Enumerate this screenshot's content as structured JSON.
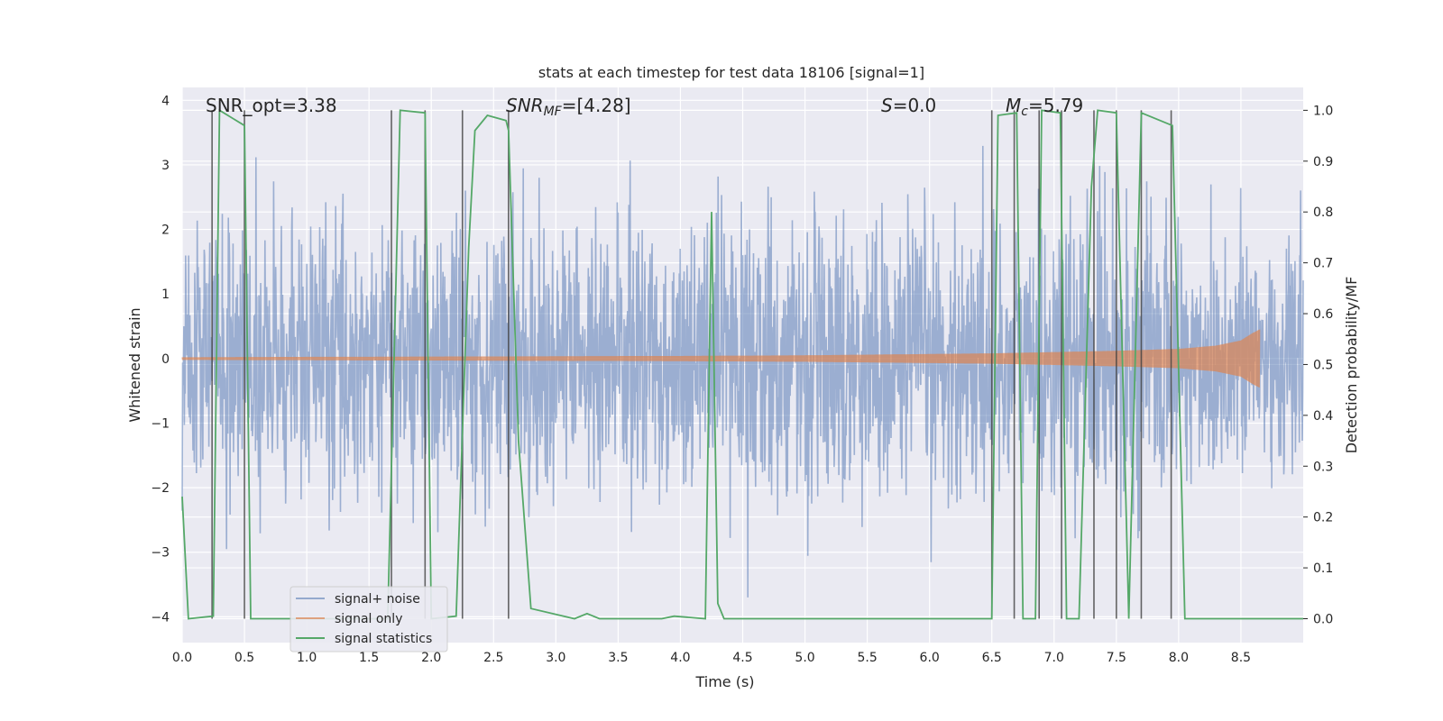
{
  "chart_data": {
    "type": "line",
    "title": "stats at each timestep for test data 18106 [signal=1]",
    "xlabel": "Time (s)",
    "ylabel": "Whitened strain",
    "y2label": "Detection probability/MF",
    "xlim": [
      0.0,
      9.0
    ],
    "ylim": [
      -4.4,
      4.2
    ],
    "y2lim": [
      -0.047,
      1.045
    ],
    "xticks": [
      0.0,
      0.5,
      1.0,
      1.5,
      2.0,
      2.5,
      3.0,
      3.5,
      4.0,
      4.5,
      5.0,
      5.5,
      6.0,
      6.5,
      7.0,
      7.5,
      8.0,
      8.5
    ],
    "xtick_labels": [
      "0.0",
      "0.5",
      "1.0",
      "1.5",
      "2.0",
      "2.5",
      "3.0",
      "3.5",
      "4.0",
      "4.5",
      "5.0",
      "5.5",
      "6.0",
      "6.5",
      "7.0",
      "7.5",
      "8.0",
      "8.5"
    ],
    "yticks": [
      -4,
      -3,
      -2,
      -1,
      0,
      1,
      2,
      3,
      4
    ],
    "ytick_labels": [
      "−4",
      "−3",
      "−2",
      "−1",
      "0",
      "1",
      "2",
      "3",
      "4"
    ],
    "y2ticks": [
      0.0,
      0.1,
      0.2,
      0.3,
      0.4,
      0.5,
      0.6,
      0.7,
      0.8,
      0.9,
      1.0
    ],
    "y2tick_labels": [
      "0.0",
      "0.1",
      "0.2",
      "0.3",
      "0.4",
      "0.5",
      "0.6",
      "0.7",
      "0.8",
      "0.9",
      "1.0"
    ],
    "grid": true,
    "legend_position": "lower-left",
    "annotations": {
      "snr_opt": "SNR_opt=3.38",
      "snr_mf_prefix": "SNR",
      "snr_mf_sub": "MF",
      "snr_mf_value": "=[4.28]",
      "s_prefix": "S",
      "s_value": "=0.0",
      "mc_prefix": "M",
      "mc_sub": "c",
      "mc_value": "=5.79"
    },
    "colors": {
      "noise": "#4c72b0",
      "signal": "#dd8452",
      "stats": "#55a868",
      "vline": "#404040",
      "background": "#eaeaf2",
      "grid": "#ffffff"
    },
    "series": [
      {
        "name": "signal+ noise",
        "style": "dense noisy strain trace",
        "x_range": [
          0.0,
          9.0
        ],
        "core_band": [
          -1.5,
          1.5
        ],
        "typical_peaks": [
          -2.5,
          2.8
        ],
        "extremes": [
          -3.7,
          3.6
        ]
      },
      {
        "name": "signal only",
        "style": "chirp waveform growing in amplitude",
        "x_range": [
          0.0,
          8.65
        ],
        "amplitude_envelope": {
          "x": [
            0.0,
            2.0,
            4.0,
            5.0,
            6.0,
            6.5,
            7.0,
            7.5,
            8.0,
            8.3,
            8.5,
            8.6,
            8.65
          ],
          "y": [
            0.02,
            0.03,
            0.04,
            0.05,
            0.07,
            0.08,
            0.1,
            0.12,
            0.15,
            0.2,
            0.28,
            0.4,
            0.45
          ]
        }
      },
      {
        "name": "signal statistics",
        "axis": "right",
        "x": [
          0.0,
          0.05,
          0.25,
          0.3,
          0.5,
          0.55,
          1.65,
          1.75,
          1.95,
          2.0,
          2.2,
          2.3,
          2.35,
          2.45,
          2.6,
          2.62,
          2.7,
          2.8,
          3.15,
          3.25,
          3.35,
          3.85,
          3.95,
          4.2,
          4.25,
          4.3,
          4.35,
          6.5,
          6.55,
          6.7,
          6.75,
          6.85,
          6.9,
          7.05,
          7.1,
          7.2,
          7.3,
          7.35,
          7.5,
          7.6,
          7.7,
          7.95,
          8.05,
          9.0
        ],
        "y": [
          0.24,
          0.0,
          0.005,
          1.0,
          0.97,
          0.0,
          0.0,
          1.0,
          0.995,
          0.0,
          0.005,
          0.73,
          0.96,
          0.99,
          0.98,
          0.96,
          0.35,
          0.02,
          0.0,
          0.01,
          0.0,
          0.0,
          0.005,
          0.0,
          0.8,
          0.03,
          0.0,
          0.0,
          0.99,
          0.995,
          0.0,
          0.0,
          1.0,
          0.995,
          0.0,
          0.0,
          0.85,
          1.0,
          0.995,
          0.0,
          0.995,
          0.97,
          0.0,
          0.0
        ]
      }
    ],
    "vlines_x": [
      0.24,
      0.5,
      1.68,
      1.95,
      2.25,
      2.62,
      6.5,
      6.68,
      6.88,
      7.06,
      7.32,
      7.5,
      7.7,
      7.94
    ]
  },
  "legend": {
    "items": [
      {
        "label": "signal+ noise"
      },
      {
        "label": "signal only"
      },
      {
        "label": "signal statistics"
      }
    ]
  }
}
